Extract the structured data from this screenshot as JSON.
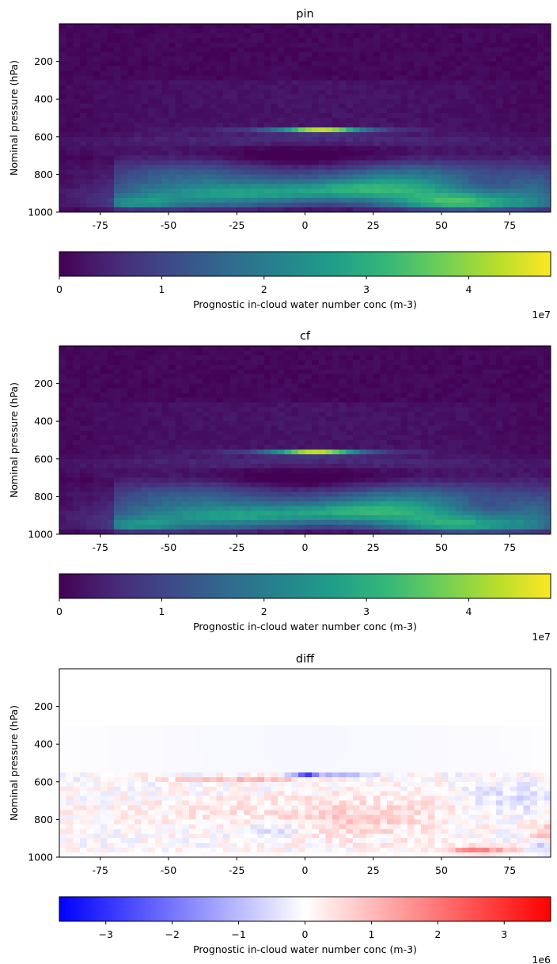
{
  "chart_data": [
    {
      "type": "heatmap",
      "title": "pin",
      "xlabel": "",
      "ylabel": "Nominal pressure (hPa)",
      "xlim": [
        -90,
        90
      ],
      "ylim": [
        1000,
        0
      ],
      "xticks": [
        -75,
        -50,
        -25,
        0,
        25,
        50,
        75
      ],
      "yticks": [
        200,
        400,
        600,
        800,
        1000
      ],
      "colormap": "viridis",
      "colorbar": {
        "label": "Prognostic in-cloud water number conc (m-3)",
        "range": [
          0,
          48000000
        ],
        "ticks": [
          0,
          1,
          2,
          3,
          4
        ],
        "tick_labels": [
          "0",
          "1",
          "2",
          "3",
          "4"
        ],
        "offset_text": "1e7",
        "orientation": "horizontal"
      },
      "features": [
        {
          "lat": 6,
          "pressure": 565,
          "value": 48000000,
          "note": "peak"
        },
        {
          "lat": 58,
          "pressure": 960,
          "value": 29000000
        },
        {
          "lat": -60,
          "pressure": 950,
          "value": 22000000
        }
      ]
    },
    {
      "type": "heatmap",
      "title": "cf",
      "xlabel": "",
      "ylabel": "Nominal pressure (hPa)",
      "xlim": [
        -90,
        90
      ],
      "ylim": [
        1000,
        0
      ],
      "xticks": [
        -75,
        -50,
        -25,
        0,
        25,
        50,
        75
      ],
      "yticks": [
        200,
        400,
        600,
        800,
        1000
      ],
      "colormap": "viridis",
      "colorbar": {
        "label": "Prognostic in-cloud water number conc (m-3)",
        "range": [
          0,
          48000000
        ],
        "ticks": [
          0,
          1,
          2,
          3,
          4
        ],
        "tick_labels": [
          "0",
          "1",
          "2",
          "3",
          "4"
        ],
        "offset_text": "1e7",
        "orientation": "horizontal"
      },
      "features": [
        {
          "lat": 4,
          "pressure": 565,
          "value": 46000000,
          "note": "peak"
        },
        {
          "lat": 55,
          "pressure": 960,
          "value": 26000000
        },
        {
          "lat": -60,
          "pressure": 950,
          "value": 22000000
        }
      ]
    },
    {
      "type": "heatmap",
      "title": "diff",
      "xlabel": "",
      "ylabel": "Nominal pressure (hPa)",
      "xlim": [
        -90,
        90
      ],
      "ylim": [
        1000,
        0
      ],
      "xticks": [
        -75,
        -50,
        -25,
        0,
        25,
        50,
        75
      ],
      "yticks": [
        200,
        400,
        600,
        800,
        1000
      ],
      "colormap": "bwr",
      "colorbar": {
        "label": "Prognostic in-cloud water number conc (m-3)",
        "range": [
          -3700000,
          3700000
        ],
        "ticks": [
          -3,
          -2,
          -1,
          0,
          1,
          2,
          3
        ],
        "tick_labels": [
          "−3",
          "−2",
          "−1",
          "0",
          "1",
          "2",
          "3"
        ],
        "offset_text": "1e6",
        "orientation": "horizontal"
      },
      "features": [
        {
          "lat": -1,
          "pressure": 570,
          "value": -3700000,
          "note": "strong negative"
        },
        {
          "lat": 63,
          "pressure": 960,
          "value": 2200000
        },
        {
          "lat": -20,
          "pressure": 590,
          "value": 900000
        }
      ]
    }
  ]
}
